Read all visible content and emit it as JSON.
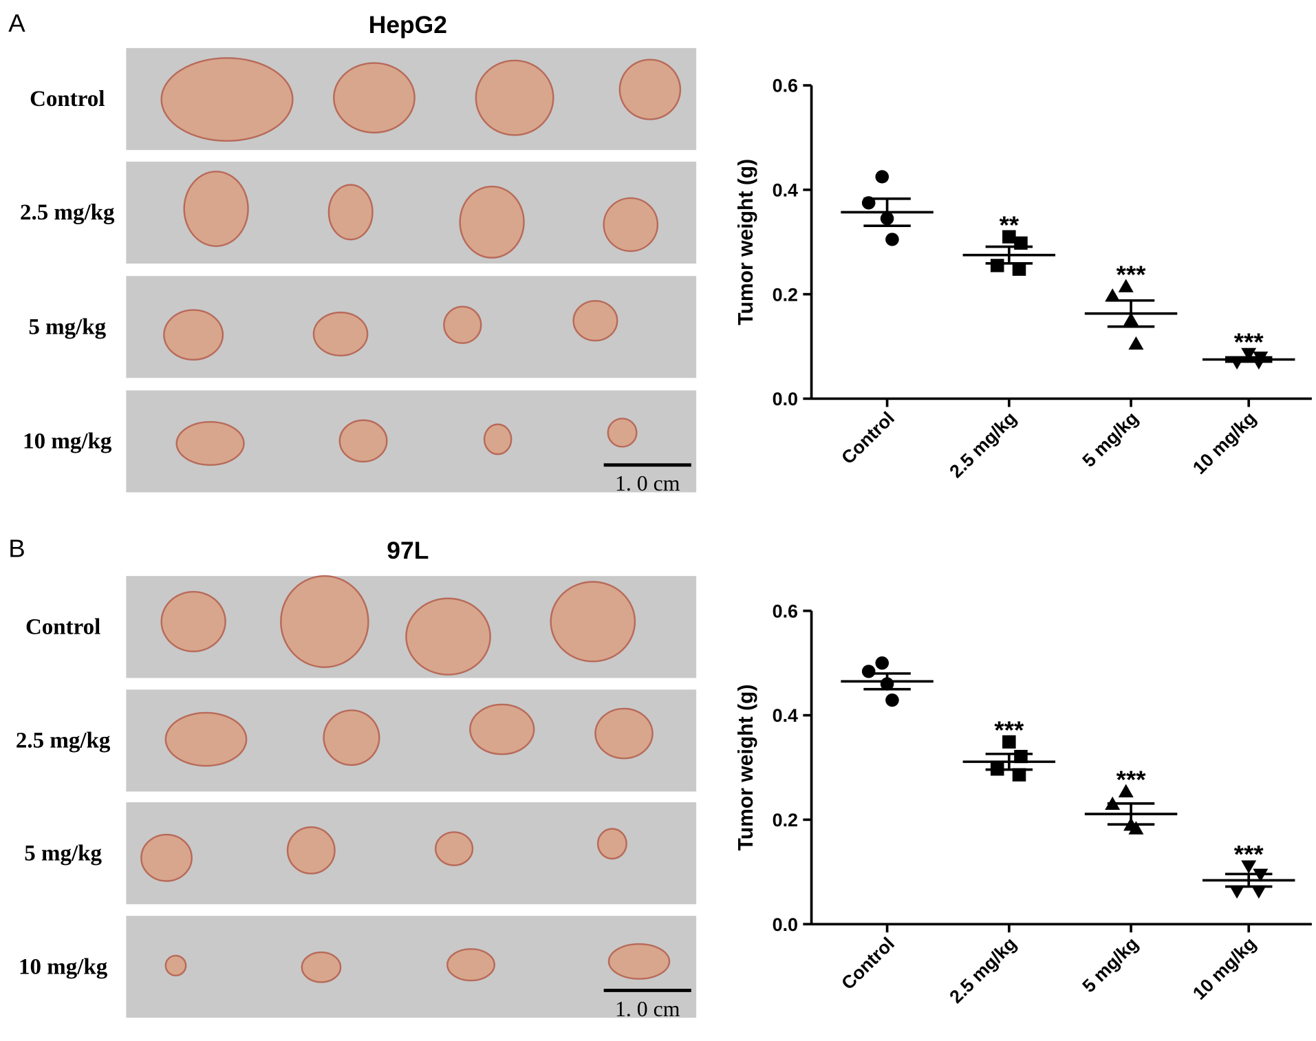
{
  "chart_data": [
    {
      "type": "dot-plot",
      "panel_label": "A",
      "title": "HepG2",
      "photo_rows": [
        "Control",
        "2.5 mg/kg",
        "5 mg/kg",
        "10 mg/kg"
      ],
      "scale_bar": "1. 0 cm",
      "y_label": "Tumor weight (g)",
      "categories": [
        "Control",
        "2.5 mg/kg",
        "5 mg/kg",
        "10 mg/kg"
      ],
      "markers": [
        "circle",
        "square",
        "triangle",
        "triangle-down"
      ],
      "color": "#000000",
      "points": [
        [
          0.425,
          0.375,
          0.345,
          0.305
        ],
        [
          0.31,
          0.298,
          0.255,
          0.248
        ],
        [
          0.215,
          0.197,
          0.151,
          0.105
        ],
        [
          0.086,
          0.079,
          0.07,
          0.07
        ]
      ],
      "means": [
        0.357,
        0.275,
        0.163,
        0.075
      ],
      "sem": [
        0.026,
        0.016,
        0.025,
        0.004
      ],
      "annotations": [
        null,
        "**",
        "***",
        "***"
      ],
      "ylim": [
        0,
        0.6
      ],
      "yticks": [
        {
          "value": 0,
          "label": "0.0"
        },
        0.2,
        0.4,
        0.6
      ]
    },
    {
      "type": "dot-plot",
      "panel_label": "B",
      "title": "97L",
      "photo_rows": [
        "Control",
        "2.5 mg/kg",
        "5 mg/kg",
        "10 mg/kg"
      ],
      "scale_bar": "1. 0 cm",
      "y_label": "Tumor weight (g)",
      "categories": [
        "Control",
        "2.5 mg/kg",
        "5 mg/kg",
        "10 mg/kg"
      ],
      "markers": [
        "circle",
        "square",
        "triangle",
        "triangle-down"
      ],
      "color": "#000000",
      "points": [
        [
          0.5,
          0.484,
          0.46,
          0.429
        ],
        [
          0.349,
          0.321,
          0.297,
          0.286
        ],
        [
          0.254,
          0.23,
          0.19,
          0.183
        ],
        [
          0.111,
          0.095,
          0.063,
          0.063
        ]
      ],
      "means": [
        0.465,
        0.311,
        0.211,
        0.084
      ],
      "sem": [
        0.015,
        0.015,
        0.02,
        0.012
      ],
      "annotations": [
        null,
        "***",
        "***",
        "***"
      ],
      "ylim": [
        0,
        0.6
      ],
      "yticks": [
        {
          "value": 0,
          "label": "0.0"
        },
        0.2,
        0.4,
        0.6
      ]
    }
  ]
}
